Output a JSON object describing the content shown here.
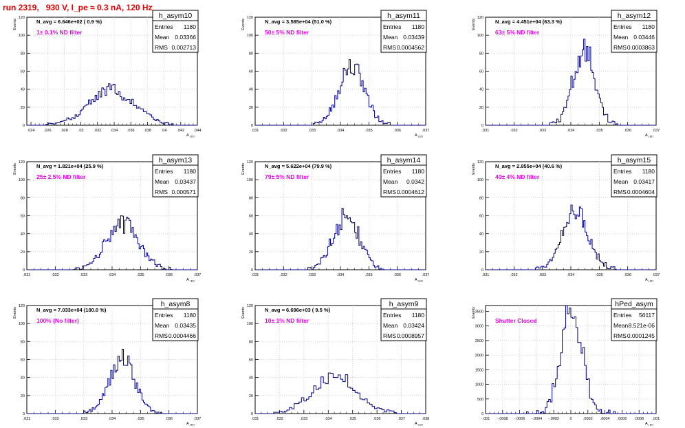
{
  "header": {
    "title": "run 2319,   930 V, I_pe ≈ 0.3 nA, 120 Hz"
  },
  "stats_labels": {
    "entries": "Entries",
    "mean": "Mean",
    "rms": "RMS"
  },
  "colors": {
    "histogram": "#000080",
    "magenta": "#e600e6",
    "header_red": "#e00000",
    "grid": "#c8c8c8"
  },
  "chart_data": [
    {
      "type": "histogram",
      "name": "h_asym10",
      "navg": "N_avg = 6.646e+02 ( 0.9 %)",
      "filter": "1± 0.1% ND filter",
      "ylabel": "Events",
      "xlabel": "A",
      "xlabel_sub": "LED",
      "xlim": [
        0.0235,
        0.044
      ],
      "ylim": [
        0,
        120
      ],
      "xticks": [
        0.024,
        0.026,
        0.028,
        0.03,
        0.032,
        0.034,
        0.036,
        0.038,
        0.04,
        0.042,
        0.044
      ],
      "yticks": [
        0,
        20,
        40,
        60,
        80,
        100,
        120
      ],
      "entries": "1180",
      "mean": "0.03366",
      "rms": "0.002713",
      "dist": {
        "mu": 0.0337,
        "sigma": 0.0027,
        "peak": 40,
        "bin": 0.0002
      }
    },
    {
      "type": "histogram",
      "name": "h_asym11",
      "navg": "N_avg = 3.585e+04 (51.0 %)",
      "filter": "50± 5% ND filter",
      "ylabel": "Events",
      "xlabel": "A",
      "xlabel_sub": "LED",
      "xlim": [
        0.031,
        0.037
      ],
      "ylim": [
        0,
        120
      ],
      "xticks": [
        0.031,
        0.032,
        0.033,
        0.034,
        0.035,
        0.036,
        0.037
      ],
      "yticks": [
        0,
        20,
        40,
        60,
        80,
        100,
        120
      ],
      "entries": "1180",
      "mean": "0.03439",
      "rms": "0.0004562",
      "dist": {
        "mu": 0.03439,
        "sigma": 0.00045,
        "peak": 66,
        "bin": 5e-05
      }
    },
    {
      "type": "histogram",
      "name": "h_asym12",
      "navg": "N_avg = 4.451e+04 (63.3 %)",
      "filter": "63± 5% ND filter",
      "ylabel": "Events",
      "xlabel": "A",
      "xlabel_sub": "LED",
      "xlim": [
        0.031,
        0.037
      ],
      "ylim": [
        0,
        120
      ],
      "xticks": [
        0.031,
        0.032,
        0.033,
        0.034,
        0.035,
        0.036,
        0.037
      ],
      "yticks": [
        0,
        20,
        40,
        60,
        80,
        100,
        120
      ],
      "entries": "1180",
      "mean": "0.03446",
      "rms": "0.0003863",
      "dist": {
        "mu": 0.03446,
        "sigma": 0.00038,
        "peak": 84,
        "bin": 5e-05
      }
    },
    {
      "type": "histogram",
      "name": "h_asym13",
      "navg": "N_avg = 1.821e+04 (25.9 %)",
      "filter": "25± 2.5% ND filter",
      "ylabel": "Events",
      "xlabel": "A",
      "xlabel_sub": "LED",
      "xlim": [
        0.031,
        0.037
      ],
      "ylim": [
        0,
        120
      ],
      "xticks": [
        0.031,
        0.032,
        0.033,
        0.034,
        0.035,
        0.036,
        0.037
      ],
      "yticks": [
        0,
        20,
        40,
        60,
        80,
        100,
        120
      ],
      "entries": "1180",
      "mean": "0.03437",
      "rms": "0.000571",
      "dist": {
        "mu": 0.03437,
        "sigma": 0.00057,
        "peak": 52,
        "bin": 5e-05
      }
    },
    {
      "type": "histogram",
      "name": "h_asym14",
      "navg": "N_avg = 5.622e+04 (79.9 %)",
      "filter": "79± 5% ND filter",
      "ylabel": "Events",
      "xlabel": "A",
      "xlabel_sub": "LED",
      "xlim": [
        0.031,
        0.037
      ],
      "ylim": [
        0,
        120
      ],
      "xticks": [
        0.031,
        0.032,
        0.033,
        0.034,
        0.035,
        0.036,
        0.037
      ],
      "yticks": [
        0,
        20,
        40,
        60,
        80,
        100,
        120
      ],
      "entries": "1180",
      "mean": "0.0342",
      "rms": "0.0004612",
      "dist": {
        "mu": 0.0342,
        "sigma": 0.00046,
        "peak": 60,
        "bin": 5e-05
      }
    },
    {
      "type": "histogram",
      "name": "h_asym15",
      "navg": "N_avg = 2.855e+04 (40.6 %)",
      "filter": "40± 4% ND filter",
      "ylabel": "Events",
      "xlabel": "A",
      "xlabel_sub": "LED",
      "xlim": [
        0.031,
        0.037
      ],
      "ylim": [
        0,
        120
      ],
      "xticks": [
        0.031,
        0.032,
        0.033,
        0.034,
        0.035,
        0.036,
        0.037
      ],
      "yticks": [
        0,
        20,
        40,
        60,
        80,
        100,
        120
      ],
      "entries": "1180",
      "mean": "0.03417",
      "rms": "0.0004604",
      "dist": {
        "mu": 0.03417,
        "sigma": 0.00046,
        "peak": 66,
        "bin": 5e-05
      }
    },
    {
      "type": "histogram",
      "name": "h_asym8",
      "navg": "N_avg = 7.033e+04 (100.0 %)",
      "filter": "100% (No filter)",
      "ylabel": "Events",
      "xlabel": "A",
      "xlabel_sub": "LED",
      "xlim": [
        0.031,
        0.037
      ],
      "ylim": [
        0,
        120
      ],
      "xticks": [
        0.031,
        0.032,
        0.033,
        0.034,
        0.035,
        0.036,
        0.037
      ],
      "yticks": [
        0,
        20,
        40,
        60,
        80,
        100,
        120
      ],
      "entries": "1180",
      "mean": "0.03435",
      "rms": "0.0004466",
      "dist": {
        "mu": 0.03435,
        "sigma": 0.00045,
        "peak": 60,
        "bin": 5e-05
      }
    },
    {
      "type": "histogram",
      "name": "h_asym9",
      "navg": "N_avg = 6.696e+03 ( 9.5 %)",
      "filter": "10± 1% ND filter",
      "ylabel": "Events",
      "xlabel": "A",
      "xlabel_sub": "LED",
      "xlim": [
        0.031,
        0.038
      ],
      "ylim": [
        0,
        120
      ],
      "xticks": [
        0.031,
        0.032,
        0.033,
        0.034,
        0.035,
        0.036,
        0.037,
        0.038
      ],
      "yticks": [
        0,
        20,
        40,
        60,
        80,
        100,
        120
      ],
      "entries": "1180",
      "mean": "0.03424",
      "rms": "0.0008957",
      "dist": {
        "mu": 0.03424,
        "sigma": 0.0009,
        "peak": 42,
        "bin": 0.0001
      }
    },
    {
      "type": "histogram",
      "name": "hPed_asym",
      "navg": "",
      "filter": "Shutter Closed",
      "ylabel": "Events",
      "xlabel": "A",
      "xlabel_sub": "LED",
      "xlim": [
        -0.001,
        0.001
      ],
      "ylim": [
        0,
        3700
      ],
      "xticks": [
        -0.001,
        -0.0008,
        -0.0006,
        -0.0004,
        -0.0002,
        0,
        0.0002,
        0.0004,
        0.0006,
        0.0008,
        0.001
      ],
      "yticks": [
        0,
        500,
        1000,
        1500,
        2000,
        2500,
        3000,
        3500
      ],
      "entries": "56117",
      "mean": "8.521e-06",
      "rms": "0.0001245",
      "dist": {
        "mu": 8.5e-06,
        "sigma": 0.000124,
        "peak": 3550,
        "bin": 2e-05
      }
    }
  ]
}
